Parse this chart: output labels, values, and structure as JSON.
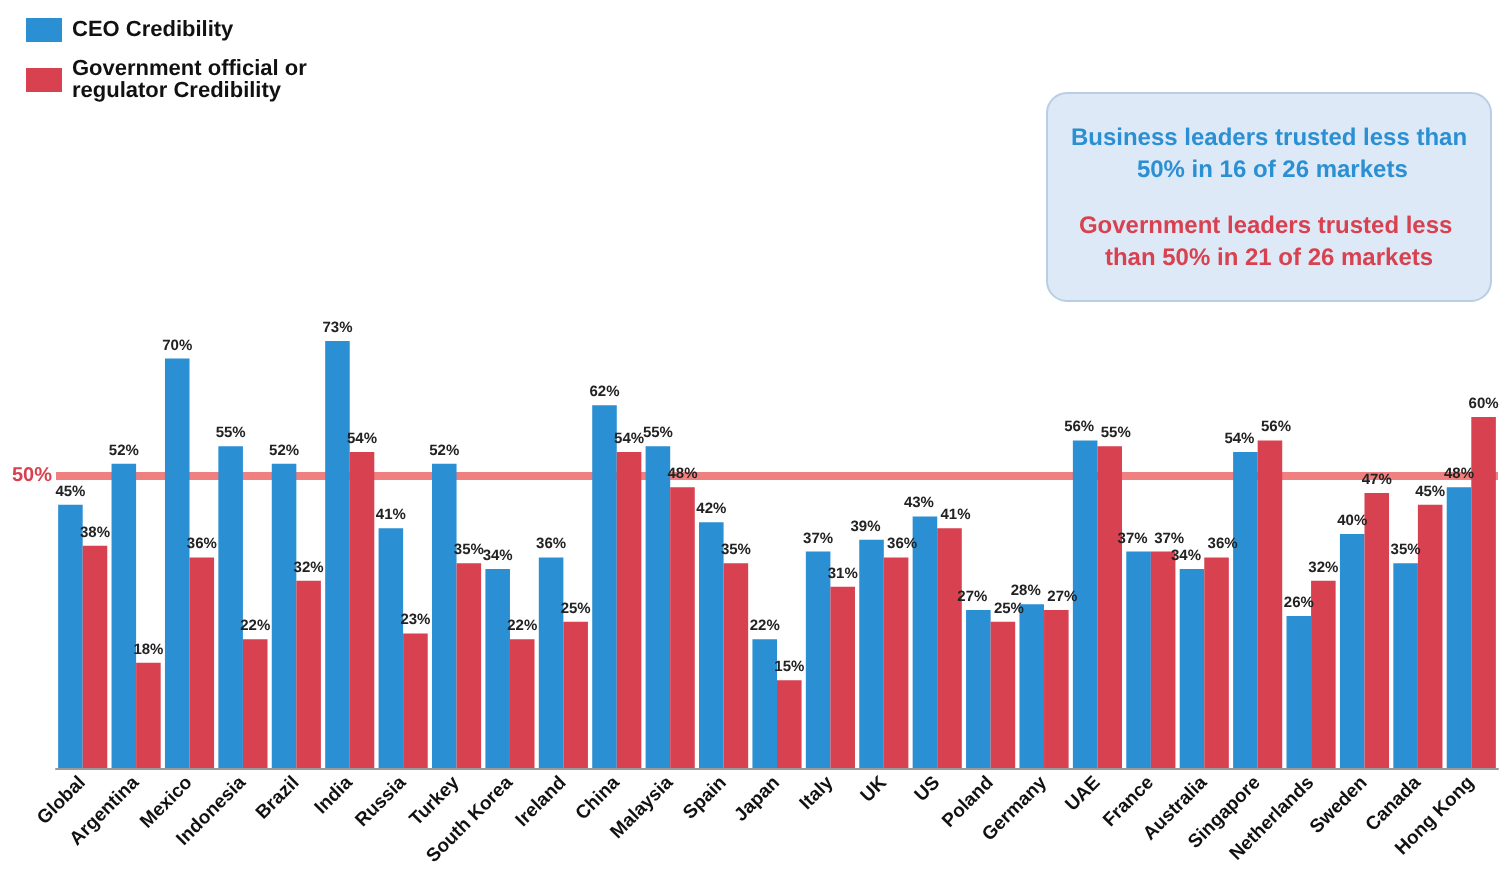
{
  "chart_data": {
    "type": "bar",
    "categories": [
      "Global",
      "Argentina",
      "Mexico",
      "Indonesia",
      "Brazil",
      "India",
      "Russia",
      "Turkey",
      "South Korea",
      "Ireland",
      "China",
      "Malaysia",
      "Spain",
      "Japan",
      "Italy",
      "UK",
      "US",
      "Poland",
      "Germany",
      "UAE",
      "France",
      "Australia",
      "Singapore",
      "Netherlands",
      "Sweden",
      "Canada",
      "Hong Kong"
    ],
    "series": [
      {
        "name": "CEO Credibility",
        "color": "#2b8fd3",
        "values": [
          45,
          52,
          70,
          55,
          52,
          73,
          41,
          52,
          34,
          36,
          62,
          55,
          42,
          22,
          37,
          39,
          43,
          27,
          28,
          56,
          37,
          34,
          54,
          26,
          40,
          35,
          48
        ],
        "value_labels": [
          "45%",
          "52%",
          "70%",
          "55%",
          "52%",
          "73%",
          "41%",
          "52%",
          "34%",
          "36%",
          "62%",
          "55%",
          "42%",
          "22%",
          "37%",
          "39%",
          "43%",
          "27%",
          "28%",
          "56%",
          "37%",
          "34%",
          "54%",
          "26%",
          "40%",
          "35%",
          "48%"
        ]
      },
      {
        "name": "Government official or regulator Credibility",
        "color": "#d8414f",
        "values": [
          38,
          18,
          36,
          22,
          32,
          54,
          23,
          35,
          22,
          25,
          54,
          48,
          35,
          15,
          31,
          36,
          41,
          25,
          27,
          55,
          37,
          36,
          56,
          32,
          47,
          45,
          60
        ],
        "value_labels": [
          "38%",
          "18%",
          "36%",
          "22%",
          "32%",
          "54%",
          "23%",
          "35%",
          "22%",
          "25%",
          "54%",
          "48%",
          "35%",
          "15%",
          "31%",
          "36%",
          "41%",
          "25%",
          "27%",
          "55%",
          "37%",
          "36%",
          "56%",
          "32%",
          "47%",
          "45%",
          "60%"
        ]
      }
    ],
    "ref_lines": [
      {
        "axis": "y",
        "value": 50,
        "label": "50%",
        "color": "#f08080",
        "line_style": "solid"
      }
    ],
    "annotations": [
      "Business leaders trusted less than 50% in 16 of 26 markets",
      "Government leaders trusted less than 50% in 21 of 26 markets"
    ],
    "legend": "top left"
  }
}
